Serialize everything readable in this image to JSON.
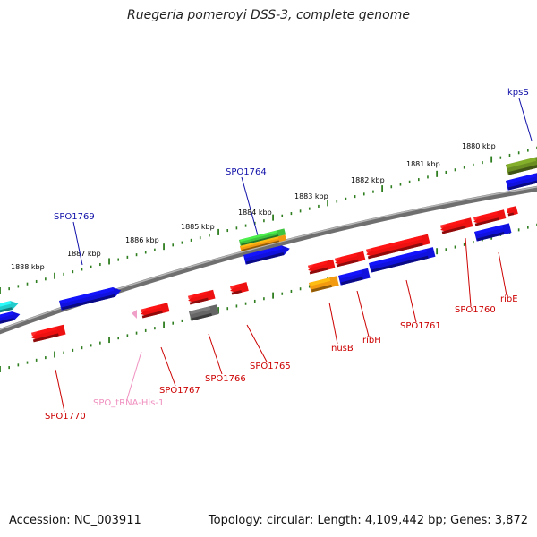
{
  "title": "Ruegeria pomeroyi DSS-3, complete genome",
  "footer": {
    "accession": "Accession: NC_003911",
    "topology": "Topology: circular; Length: 4,109,442 bp; Genes: 3,872"
  },
  "colors": {
    "backbone": "#8a8a8a",
    "tick": "#2e7d1f",
    "red": "#ee1111",
    "blue": "#1111dd",
    "orange": "#f29a10",
    "green": "#3ec43e",
    "olive": "#6b8e23",
    "cyan": "#22cccc",
    "gray": "#666666",
    "pink": "#f0a0c8",
    "label_blue": "#1111aa",
    "label_red": "#cc0000",
    "label_pink": "#f090c0"
  },
  "scale_labels": [
    {
      "text": "1888 kbp"
    },
    {
      "text": "1887 kbp"
    },
    {
      "text": "1886 kbp"
    },
    {
      "text": "1885 kbp"
    },
    {
      "text": "1884 kbp"
    },
    {
      "text": "1883 kbp"
    },
    {
      "text": "1882 kbp"
    },
    {
      "text": "1881 kbp"
    },
    {
      "text": "1880 kbp"
    }
  ],
  "gene_labels": [
    {
      "text": "kpsS",
      "color": "label_blue"
    },
    {
      "text": "SPO1764",
      "color": "label_blue"
    },
    {
      "text": "SPO1769",
      "color": "label_blue"
    },
    {
      "text": "ribE",
      "color": "label_red"
    },
    {
      "text": "SPO1760",
      "color": "label_red"
    },
    {
      "text": "SPO1761",
      "color": "label_red"
    },
    {
      "text": "ribH",
      "color": "label_red"
    },
    {
      "text": "nusB",
      "color": "label_red"
    },
    {
      "text": "SPO1765",
      "color": "label_red"
    },
    {
      "text": "SPO1766",
      "color": "label_red"
    },
    {
      "text": "SPO1767",
      "color": "label_red"
    },
    {
      "text": "SPO_tRNA-His-1",
      "color": "label_pink"
    },
    {
      "text": "SPO1770",
      "color": "label_red"
    }
  ]
}
